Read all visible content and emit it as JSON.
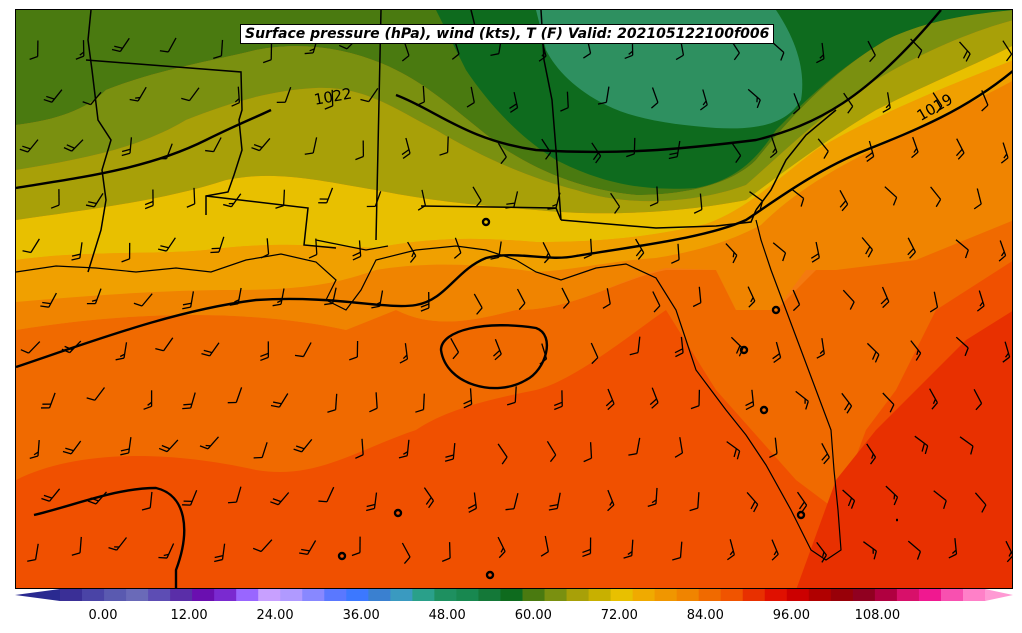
{
  "title": "Surface pressure (hPa), wind (kts), T (F) Valid: 202105122100f006",
  "isobar_labels": [
    "1022",
    "1019"
  ],
  "colorbar": {
    "tick_labels": [
      "0.00",
      "12.00",
      "24.00",
      "36.00",
      "48.00",
      "60.00",
      "72.00",
      "84.00",
      "96.00",
      "108.00"
    ],
    "tick_values": [
      0,
      12,
      24,
      36,
      48,
      60,
      72,
      84,
      96,
      108
    ],
    "min": -6,
    "max": 123,
    "step": 3,
    "colors": [
      "#3a2f96",
      "#4a44a6",
      "#5a5ab0",
      "#6a6ab8",
      "#5d4db4",
      "#5a2ea8",
      "#6a0fb0",
      "#7a2ad0",
      "#9966ff",
      "#c8a0ff",
      "#b09aff",
      "#8888ff",
      "#5a78ff",
      "#3c78ff",
      "#3a80d0",
      "#3a9ac0",
      "#2aa08a",
      "#1e9060",
      "#188850",
      "#147838",
      "#0e6b1e",
      "#4a7a10",
      "#7a9010",
      "#a8a008",
      "#c8b000",
      "#e8c000",
      "#f0aa00",
      "#f09600",
      "#f08400",
      "#f06a00",
      "#f05400",
      "#e83000",
      "#e01000",
      "#cc0000",
      "#b00000",
      "#980008",
      "#900020",
      "#b00040",
      "#d8106a",
      "#f01890",
      "#f850b0",
      "#ff80c8"
    ]
  },
  "legend_colors": {
    "t62": "#4a7a10",
    "t60": "#0e6b1e",
    "t57": "#2e9060",
    "t65": "#7a9010",
    "t68": "#a8a008",
    "t71": "#e8c000",
    "t74": "#f0a000",
    "t77": "#f08400",
    "t80": "#f06a00",
    "t83": "#f05000",
    "t86": "#e83000"
  }
}
